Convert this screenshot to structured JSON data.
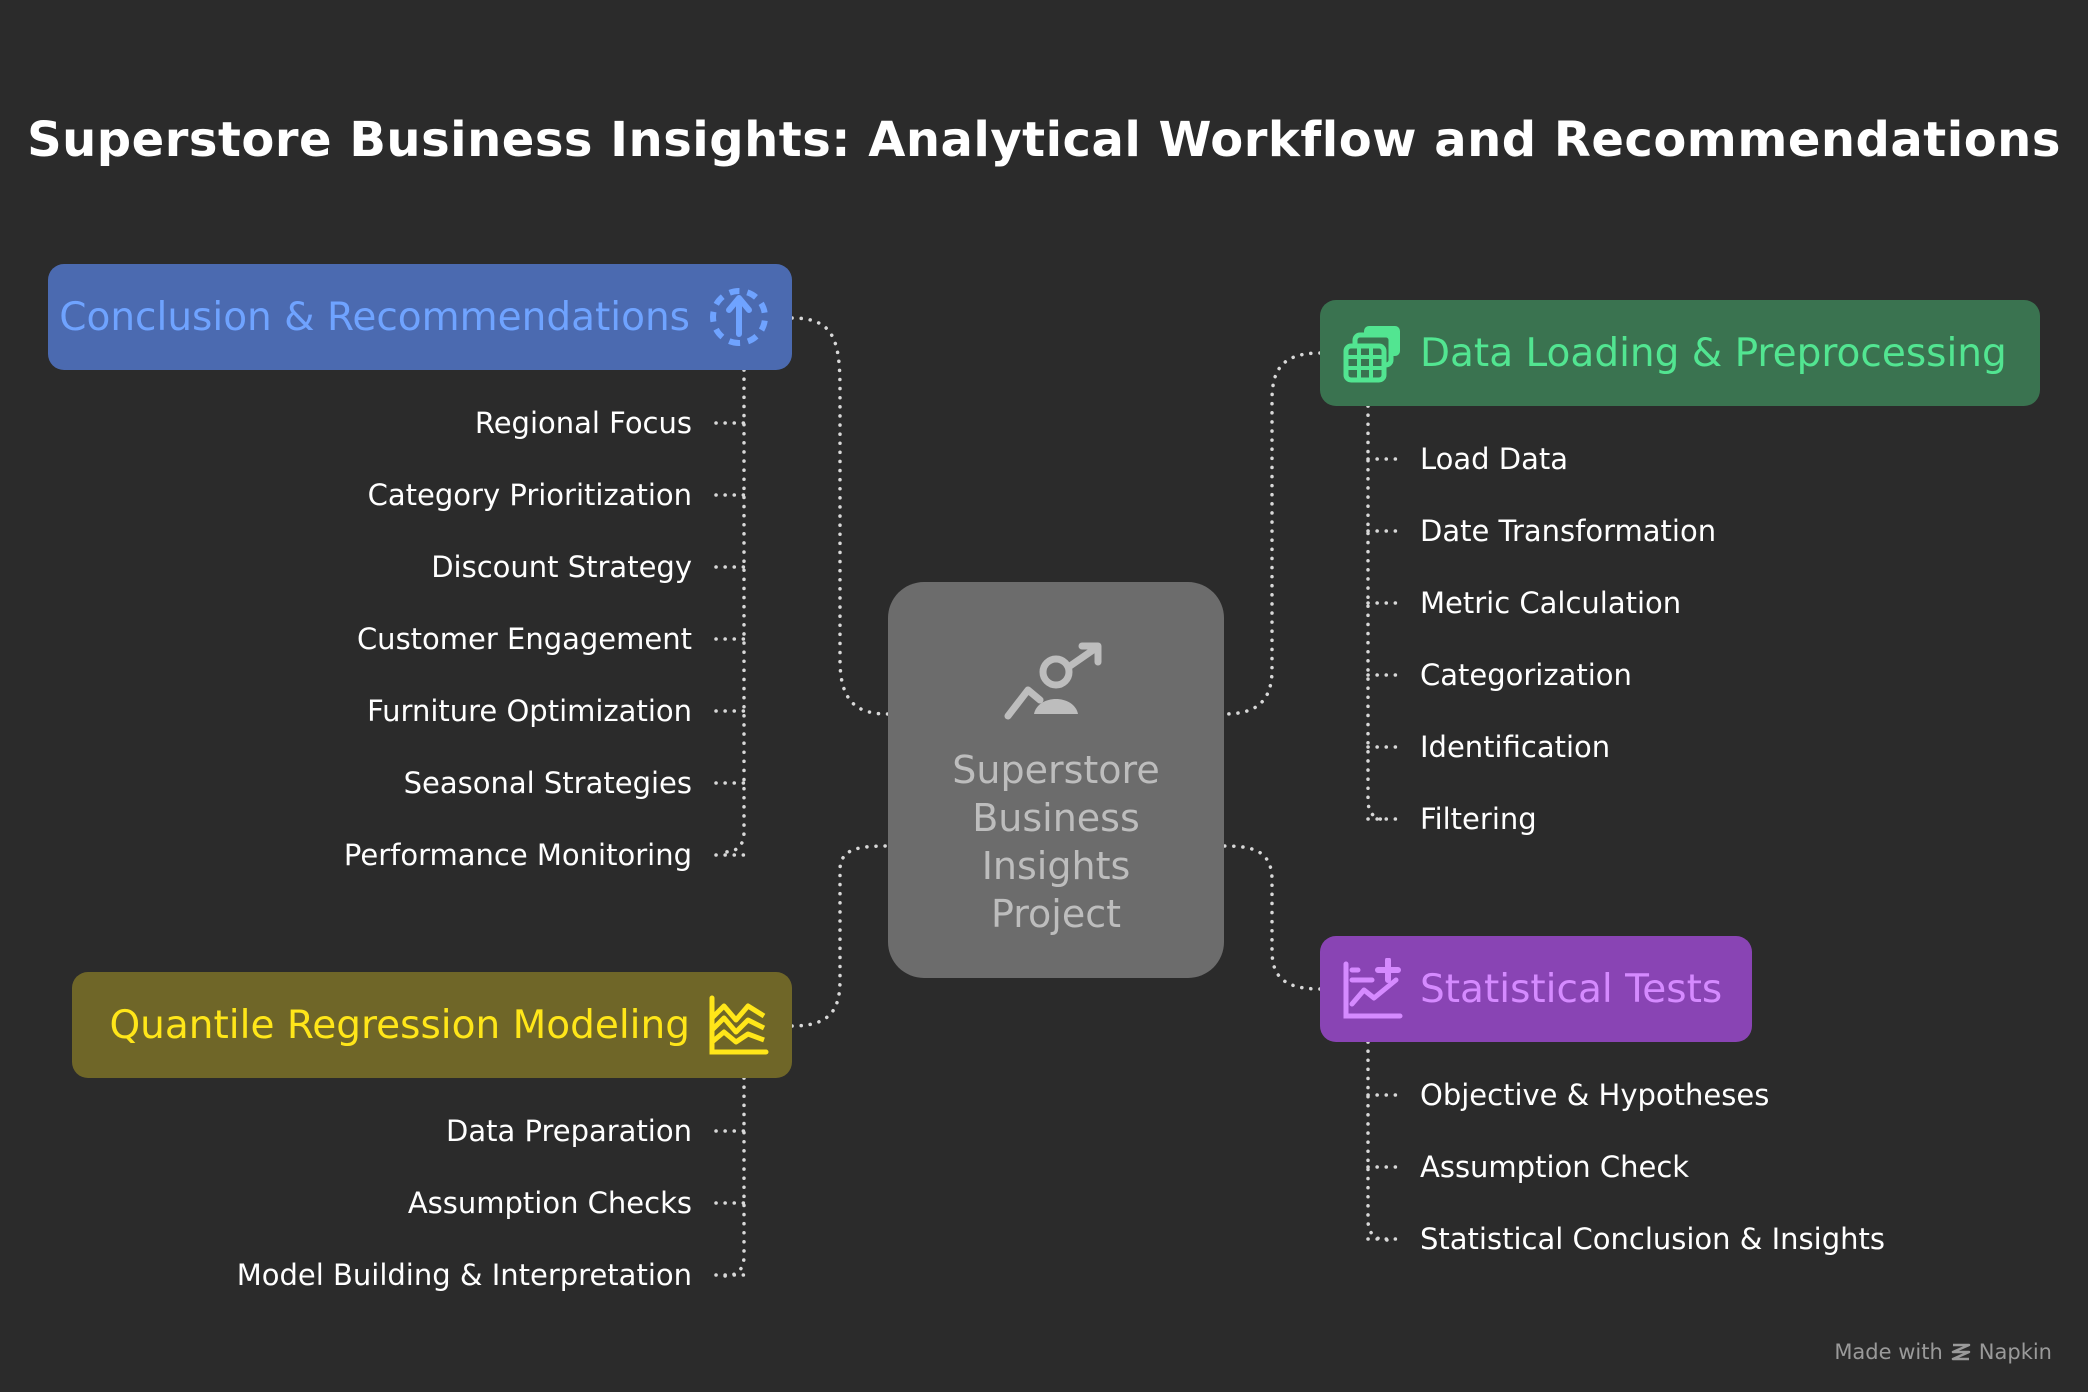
{
  "title": "Superstore Business Insights: Analytical Workflow and Recommendations",
  "center": {
    "label": "Superstore Business Insights Project",
    "icon": "person-growth-arrow-icon"
  },
  "branches": {
    "conclusion": {
      "label": "Conclusion & Recommendations",
      "icon": "dashed-circle-arrow-up-icon",
      "color": "#6fa3ff",
      "items": [
        "Regional Focus",
        "Category Prioritization",
        "Discount Strategy",
        "Customer Engagement",
        "Furniture Optimization",
        "Seasonal Strategies",
        "Performance Monitoring"
      ]
    },
    "quantile": {
      "label": "Quantile Regression Modeling",
      "icon": "area-chart-icon",
      "color": "#ffe619",
      "items": [
        "Data Preparation",
        "Assumption Checks",
        "Model Building & Interpretation"
      ]
    },
    "data": {
      "label": "Data Loading & Preprocessing",
      "icon": "stacked-tables-icon",
      "color": "#52e591",
      "items": [
        "Load Data",
        "Date Transformation",
        "Metric Calculation",
        "Categorization",
        "Identification",
        "Filtering"
      ]
    },
    "stats": {
      "label": "Statistical Tests",
      "icon": "chart-plus-icon",
      "color": "#d58aff",
      "items": [
        "Objective & Hypotheses",
        "Assumption Check",
        "Statistical Conclusion & Insights"
      ]
    }
  },
  "footer": {
    "made_with": "Made with",
    "brand": "Napkin",
    "icon": "napkin-logo-icon"
  }
}
